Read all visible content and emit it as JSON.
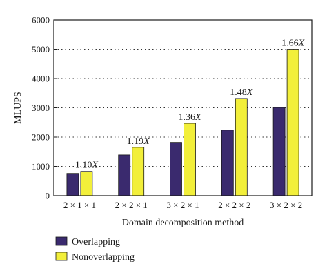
{
  "chart_data": {
    "type": "bar",
    "categories": [
      "2 × 1 × 1",
      "2 × 2 × 1",
      "3 × 2 × 1",
      "2 × 2 × 2",
      "3 × 2 × 2"
    ],
    "series": [
      {
        "name": "Overlapping",
        "values": [
          760,
          1390,
          1820,
          2240,
          3010
        ],
        "color": "#3a2a6e"
      },
      {
        "name": "Nonoverlapping",
        "values": [
          830,
          1650,
          2470,
          3320,
          5000
        ],
        "color": "#f2ef3a"
      }
    ],
    "data_labels": [
      "1.10",
      "1.19",
      "1.36",
      "1.48",
      "1.66"
    ],
    "data_label_suffix": "X",
    "xlabel": "Domain decomposition method",
    "ylabel": "MLUPS",
    "ylim": [
      0,
      6000
    ],
    "yticks": [
      0,
      1000,
      2000,
      3000,
      4000,
      5000,
      6000
    ],
    "grid": "horizontal dotted",
    "legend_position": "bottom-left"
  }
}
